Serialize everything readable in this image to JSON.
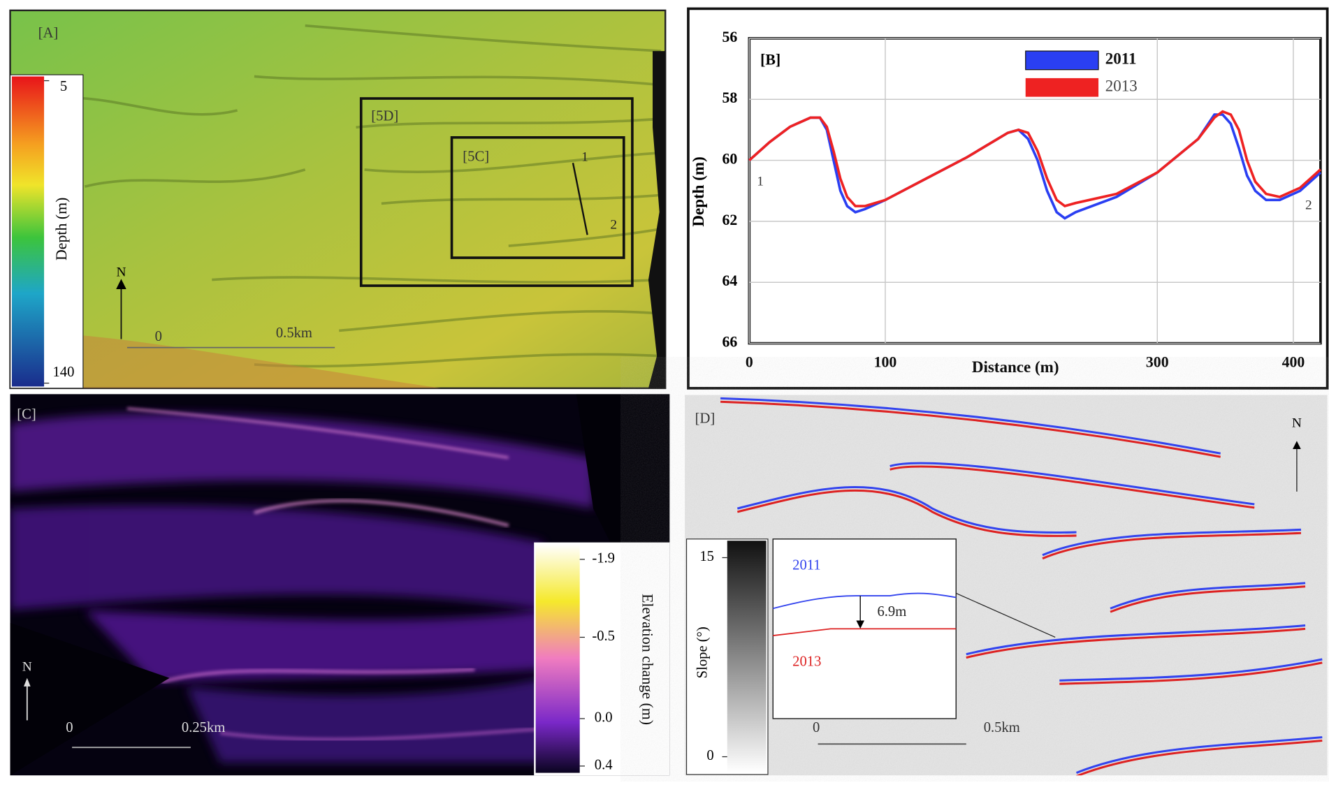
{
  "panels": {
    "a": {
      "label": "[A]",
      "box_5d": "[5D]",
      "box_5c": "[5C]",
      "profile_start": "1",
      "profile_end": "2",
      "north": "N",
      "scale_start": "0",
      "scale_end": "0.5km",
      "colorbar": {
        "title": "Depth (m)",
        "ticks": [
          5,
          140
        ]
      }
    },
    "c": {
      "label": "[C]",
      "north": "N",
      "scale_start": "0",
      "scale_end": "0.25km",
      "colorbar": {
        "title": "Elevation change (m)",
        "ticks": [
          -1.9,
          -0.5,
          {
            "value": 0,
            "label": "0.0"
          },
          0.4
        ]
      }
    },
    "d": {
      "label": "[D]",
      "north": "N",
      "scale_start": "0",
      "scale_end": "0.5km",
      "colorbar": {
        "title": "Slope (°)",
        "ticks": [
          15,
          0
        ]
      },
      "inset": {
        "year_top": "2011",
        "year_bottom": "2013",
        "offset": "6.9m"
      }
    }
  },
  "chart_data": {
    "type": "line",
    "label": "[B]",
    "x_label": "Distance (m)",
    "y_label": "Depth (m)",
    "start_label": "1",
    "end_label": "2",
    "x": [
      0,
      15,
      30,
      45,
      52,
      57,
      62,
      67,
      72,
      78,
      85,
      100,
      130,
      160,
      190,
      198,
      205,
      212,
      219,
      226,
      232,
      240,
      270,
      300,
      330,
      342,
      348,
      354,
      360,
      366,
      372,
      380,
      390,
      405,
      420
    ],
    "series": [
      {
        "name": "2011",
        "color": "#2a3ff2",
        "values": [
          60.0,
          59.4,
          58.9,
          58.6,
          58.6,
          59.0,
          60.0,
          61.0,
          61.5,
          61.7,
          61.6,
          61.3,
          60.6,
          59.9,
          59.1,
          59.0,
          59.3,
          60.0,
          61.0,
          61.7,
          61.9,
          61.7,
          61.2,
          60.4,
          59.3,
          58.5,
          58.5,
          58.8,
          59.6,
          60.5,
          61.0,
          61.3,
          61.3,
          61.0,
          60.4
        ]
      },
      {
        "name": "2013",
        "color": "#ee2222",
        "values": [
          60.0,
          59.4,
          58.9,
          58.6,
          58.6,
          58.9,
          59.7,
          60.6,
          61.2,
          61.5,
          61.5,
          61.3,
          60.6,
          59.9,
          59.1,
          59.0,
          59.1,
          59.7,
          60.6,
          61.3,
          61.5,
          61.4,
          61.1,
          60.4,
          59.3,
          58.6,
          58.4,
          58.5,
          59.0,
          60.0,
          60.7,
          61.1,
          61.2,
          60.9,
          60.3
        ]
      }
    ],
    "xlim": [
      0,
      420
    ],
    "ylim": [
      56,
      66
    ],
    "y_reversed": true,
    "xticks": [
      0,
      100,
      300,
      400
    ],
    "yticks": [
      56,
      58,
      60,
      62,
      64,
      66
    ],
    "grid": true
  }
}
